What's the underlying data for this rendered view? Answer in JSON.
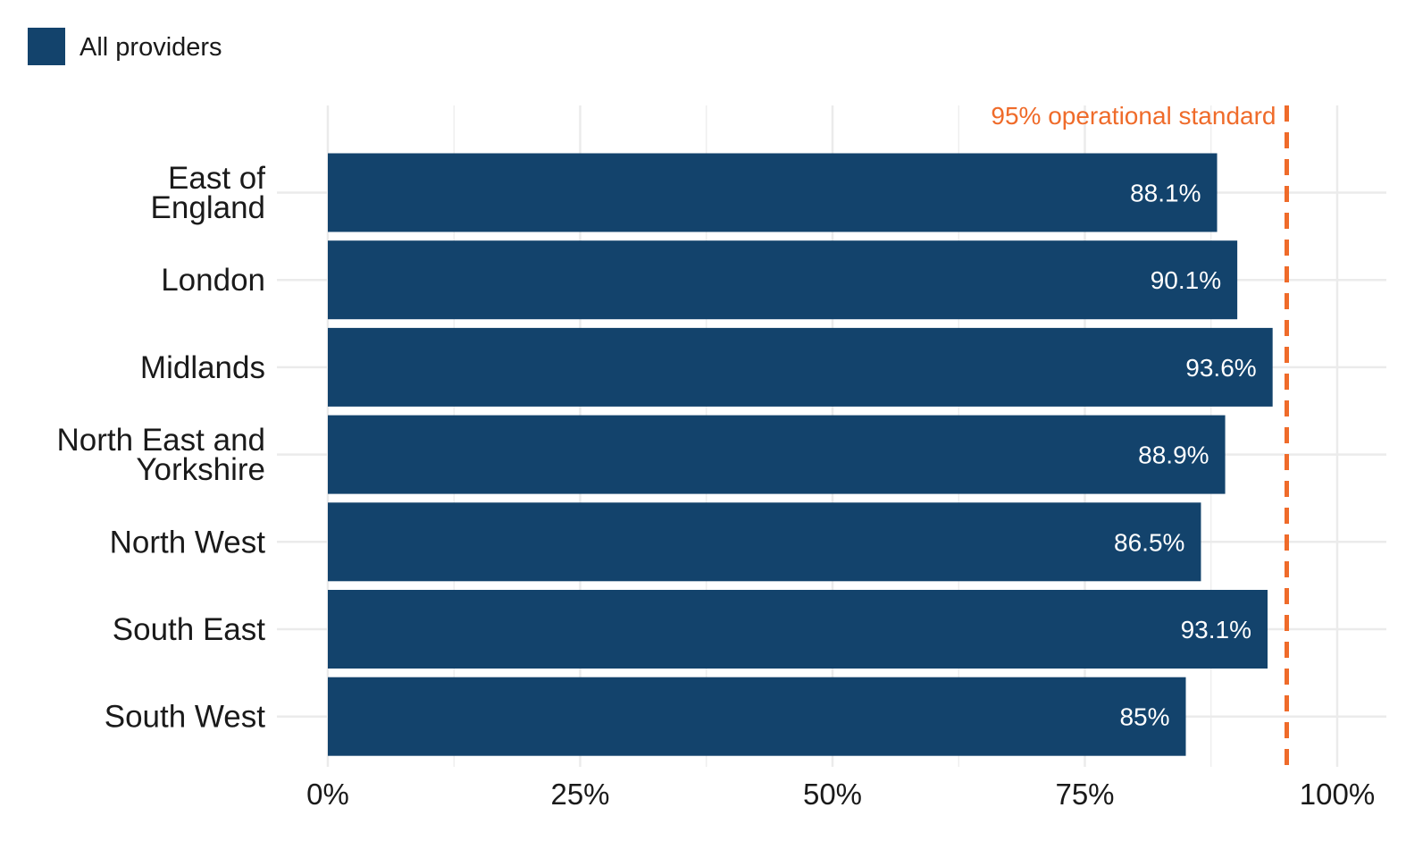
{
  "chart_data": {
    "type": "bar",
    "orientation": "horizontal",
    "categories": [
      [
        "East of",
        "England"
      ],
      [
        "London"
      ],
      [
        "Midlands"
      ],
      [
        "North East and",
        "Yorkshire"
      ],
      [
        "North West"
      ],
      [
        "South East"
      ],
      [
        "South West"
      ]
    ],
    "series": [
      {
        "name": "All providers",
        "color": "#13436C",
        "values": [
          88.1,
          90.1,
          93.6,
          88.9,
          86.5,
          93.1,
          85
        ],
        "labels": [
          "88.1%",
          "90.1%",
          "93.6%",
          "88.9%",
          "86.5%",
          "93.1%",
          "85%"
        ]
      }
    ],
    "xlim": [
      0,
      100
    ],
    "x_ticks": [
      0,
      25,
      50,
      75,
      100
    ],
    "x_tick_labels": [
      "0%",
      "25%",
      "50%",
      "75%",
      "100%"
    ],
    "reference_line": {
      "value": 95,
      "label": "95% operational standard",
      "color": "#EF6B2A",
      "style": "dashed"
    },
    "grid": true,
    "legend": "top-left"
  }
}
